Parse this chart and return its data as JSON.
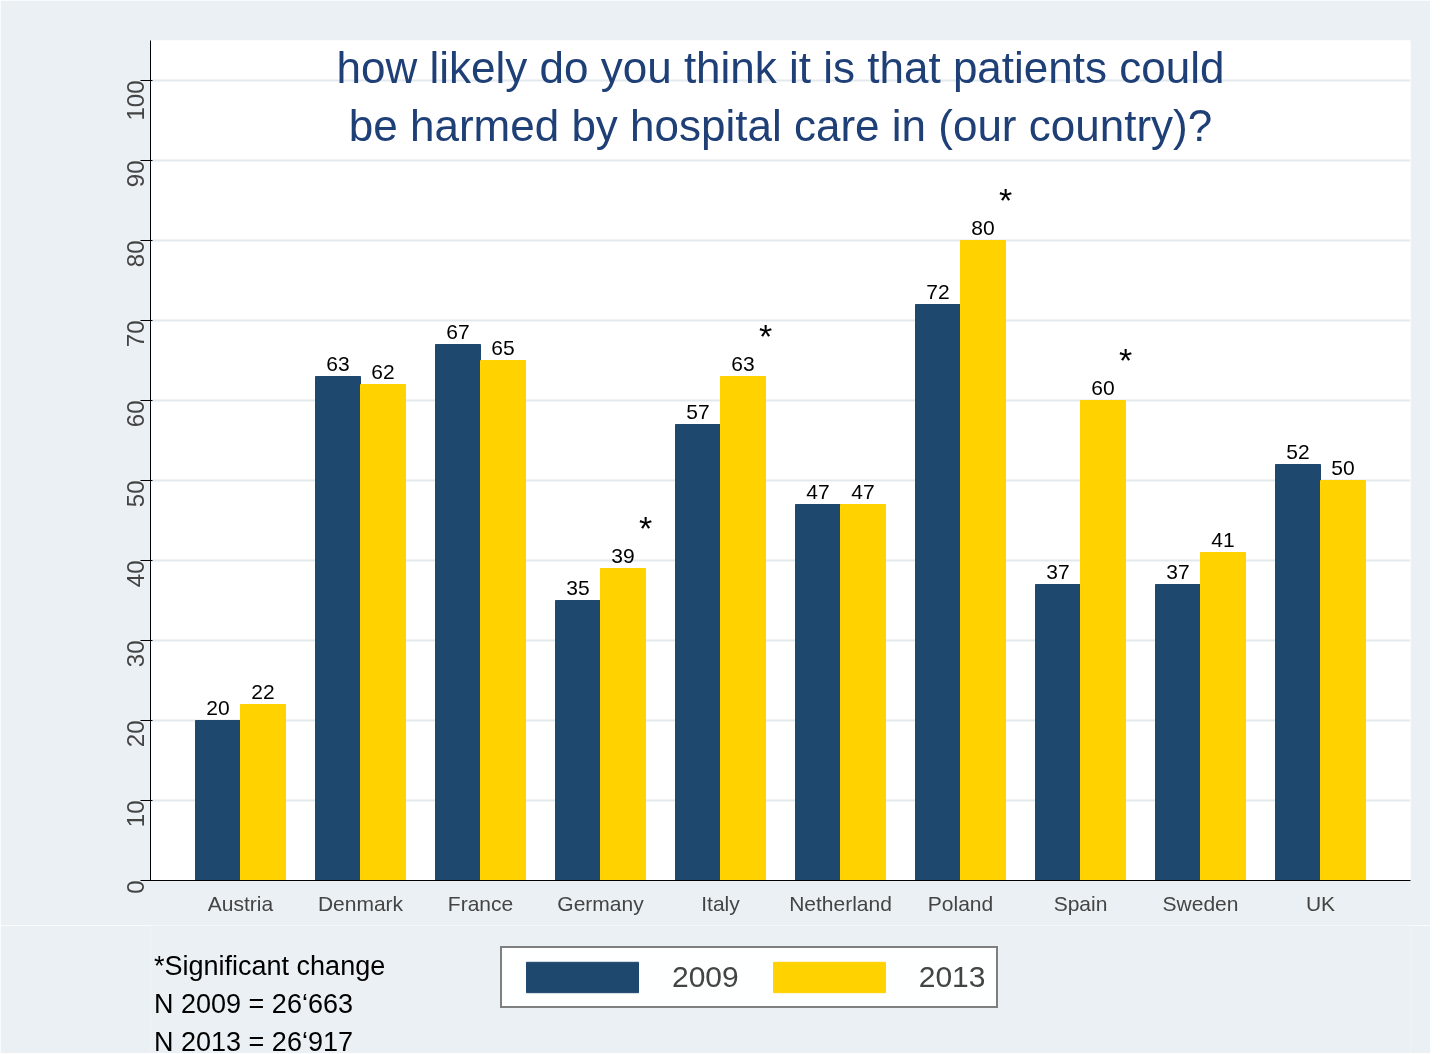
{
  "chart_data": {
    "type": "bar",
    "title": "how likely do you think it is that patients could be harmed by hospital care in (our country)?",
    "categories": [
      "Austria",
      "Denmark",
      "France",
      "Germany",
      "Italy",
      "Netherland",
      "Poland",
      "Spain",
      "Sweden",
      "UK"
    ],
    "series": [
      {
        "name": "2009",
        "color": "#1f486e",
        "values": [
          20,
          63,
          67,
          35,
          57,
          47,
          72,
          37,
          37,
          52
        ]
      },
      {
        "name": "2013",
        "color": "#ffd200",
        "values": [
          22,
          62,
          65,
          39,
          63,
          47,
          80,
          60,
          41,
          50
        ]
      }
    ],
    "ylim": [
      0,
      105
    ],
    "yticks": [
      0,
      10,
      20,
      30,
      40,
      50,
      60,
      70,
      80,
      90,
      100
    ],
    "grid": "y",
    "legend": "bottom",
    "data_labels": true,
    "annotations": [
      {
        "text": "*",
        "x": "Germany",
        "y": 39
      },
      {
        "text": "*",
        "x": "Italy",
        "y": 63
      },
      {
        "text": "*",
        "x": "Poland",
        "y": 80
      },
      {
        "text": "*",
        "x": "Spain",
        "y": 60
      },
      "*Significant change",
      "N 2009 = 26‘663",
      "N 2013 = 26‘917"
    ]
  }
}
